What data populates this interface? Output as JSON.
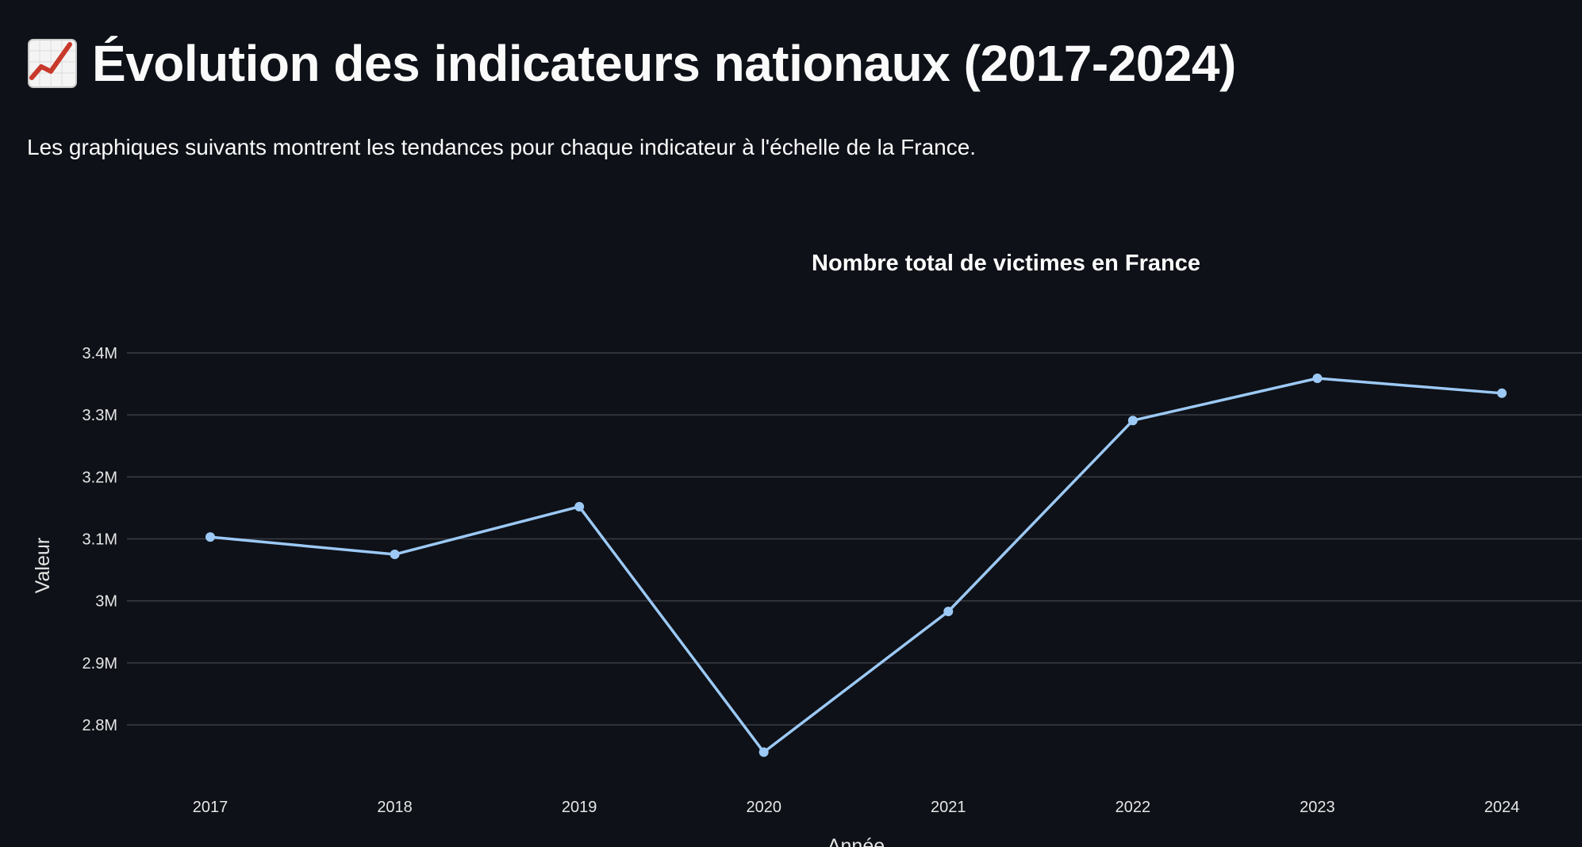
{
  "header": {
    "title": "Évolution des indicateurs nationaux (2017-2024)",
    "title_icon": "chart-increasing-icon",
    "subtitle": "Les graphiques suivants montrent les tendances pour chaque indicateur à l'échelle de la France."
  },
  "colors": {
    "background": "#0e1117",
    "line": "#9cc9f5",
    "text": "#fafafa",
    "grid": "#3a3d45"
  },
  "chart_data": {
    "type": "line",
    "title": "Nombre total de victimes en France",
    "xlabel": "Année",
    "ylabel": "Valeur",
    "categories": [
      "2017",
      "2018",
      "2019",
      "2020",
      "2021",
      "2022",
      "2023",
      "2024"
    ],
    "series": [
      {
        "values": [
          3103000,
          3075000,
          3152000,
          2756000,
          2983000,
          3291000,
          3359000,
          3335000
        ]
      }
    ],
    "ylim": [
      2700000,
      3450000
    ],
    "yticks": [
      2800000,
      2900000,
      3000000,
      3100000,
      3200000,
      3300000,
      3400000
    ],
    "ytick_labels": [
      "2.8M",
      "2.9M",
      "3M",
      "3.1M",
      "3.2M",
      "3.3M",
      "3.4M"
    ],
    "grid": true,
    "markers": true
  }
}
